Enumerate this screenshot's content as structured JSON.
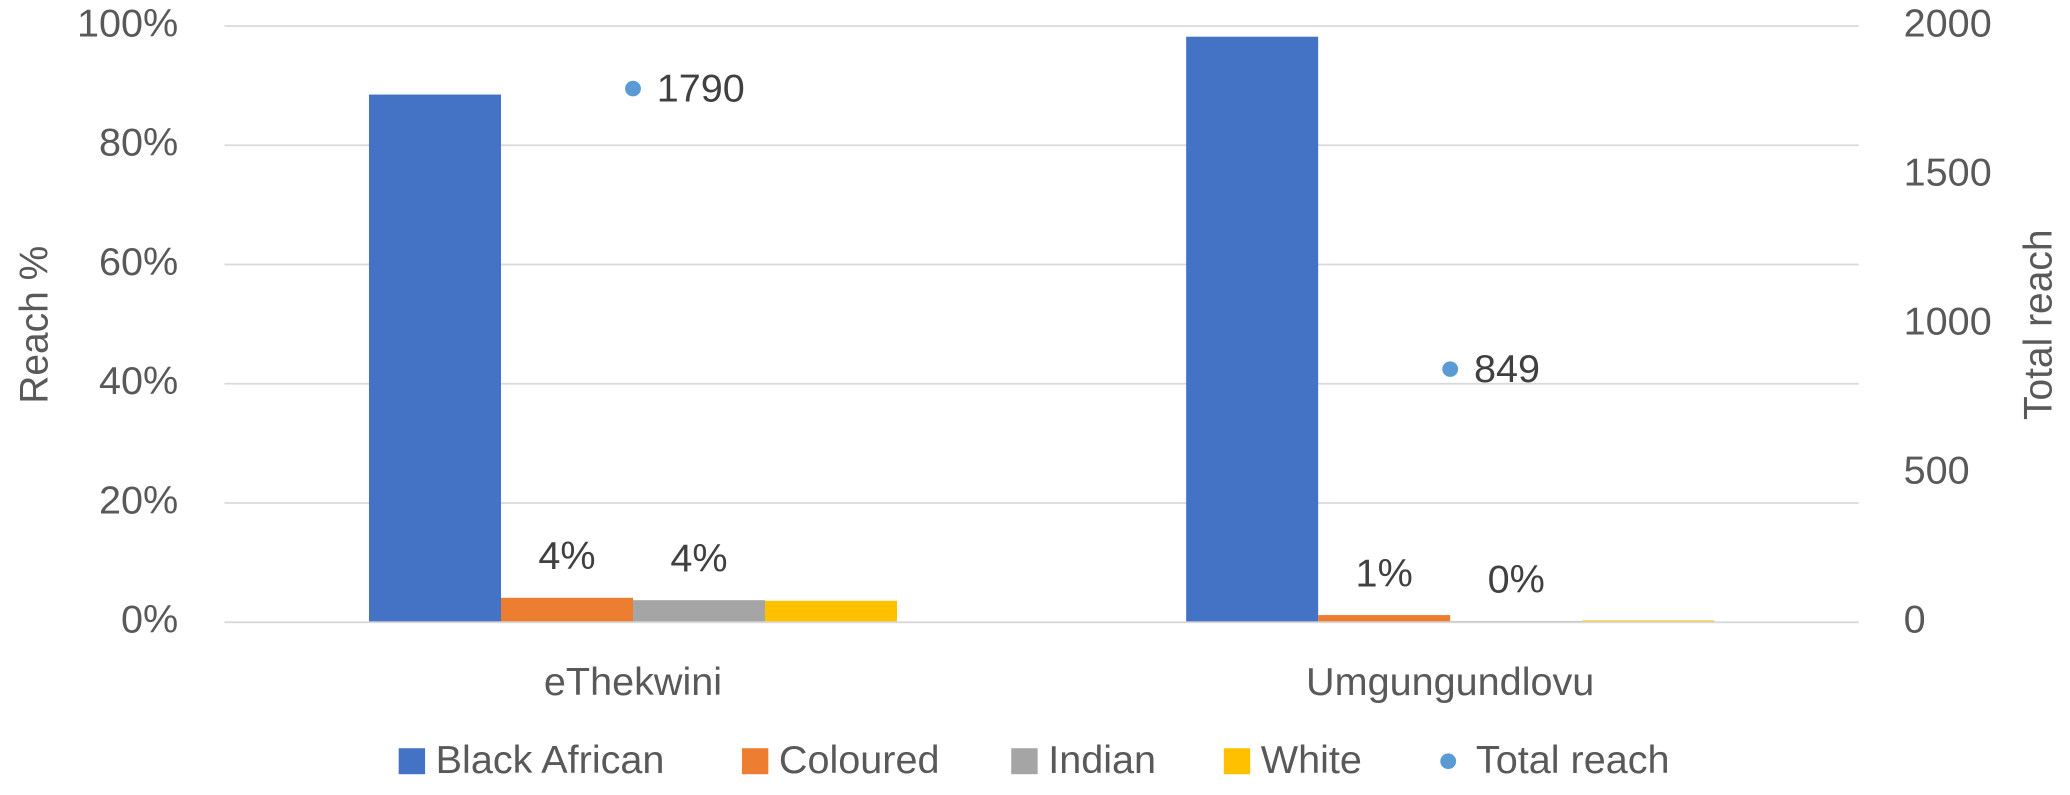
{
  "chart_data": {
    "type": "bar",
    "categories": [
      "eThekwini",
      "Umgungundlovu"
    ],
    "ylabel": "Reach %",
    "y2label": "Total reach",
    "ylim": [
      0,
      100
    ],
    "yticks": [
      {
        "value": 0,
        "label": "0%"
      },
      {
        "value": 20,
        "label": "20%"
      },
      {
        "value": 40,
        "label": "40%"
      },
      {
        "value": 60,
        "label": "60%"
      },
      {
        "value": 80,
        "label": "80%"
      },
      {
        "value": 100,
        "label": "100%"
      }
    ],
    "y2lim": [
      0,
      2000
    ],
    "y2ticks": [
      0,
      500,
      1000,
      1500,
      2000
    ],
    "grid": true,
    "legend": "bottom",
    "series": [
      {
        "name": "Black African",
        "color": "#4472c4",
        "values": [
          88.5,
          98.2
        ]
      },
      {
        "name": "Coloured",
        "color": "#ed7d31",
        "values": [
          4.1,
          1.2
        ],
        "value_labels": [
          "4%",
          "1%"
        ]
      },
      {
        "name": "Indian",
        "color": "#a5a5a5",
        "values": [
          3.7,
          0.2
        ],
        "value_labels": [
          "4%",
          "0%"
        ]
      },
      {
        "name": "White",
        "color": "#ffc000",
        "values": [
          3.6,
          0.3
        ]
      },
      {
        "name": "Total reach",
        "color": "#5b9bd5",
        "type": "scatter",
        "axis": "y2",
        "values": [
          1790,
          849
        ]
      }
    ]
  }
}
